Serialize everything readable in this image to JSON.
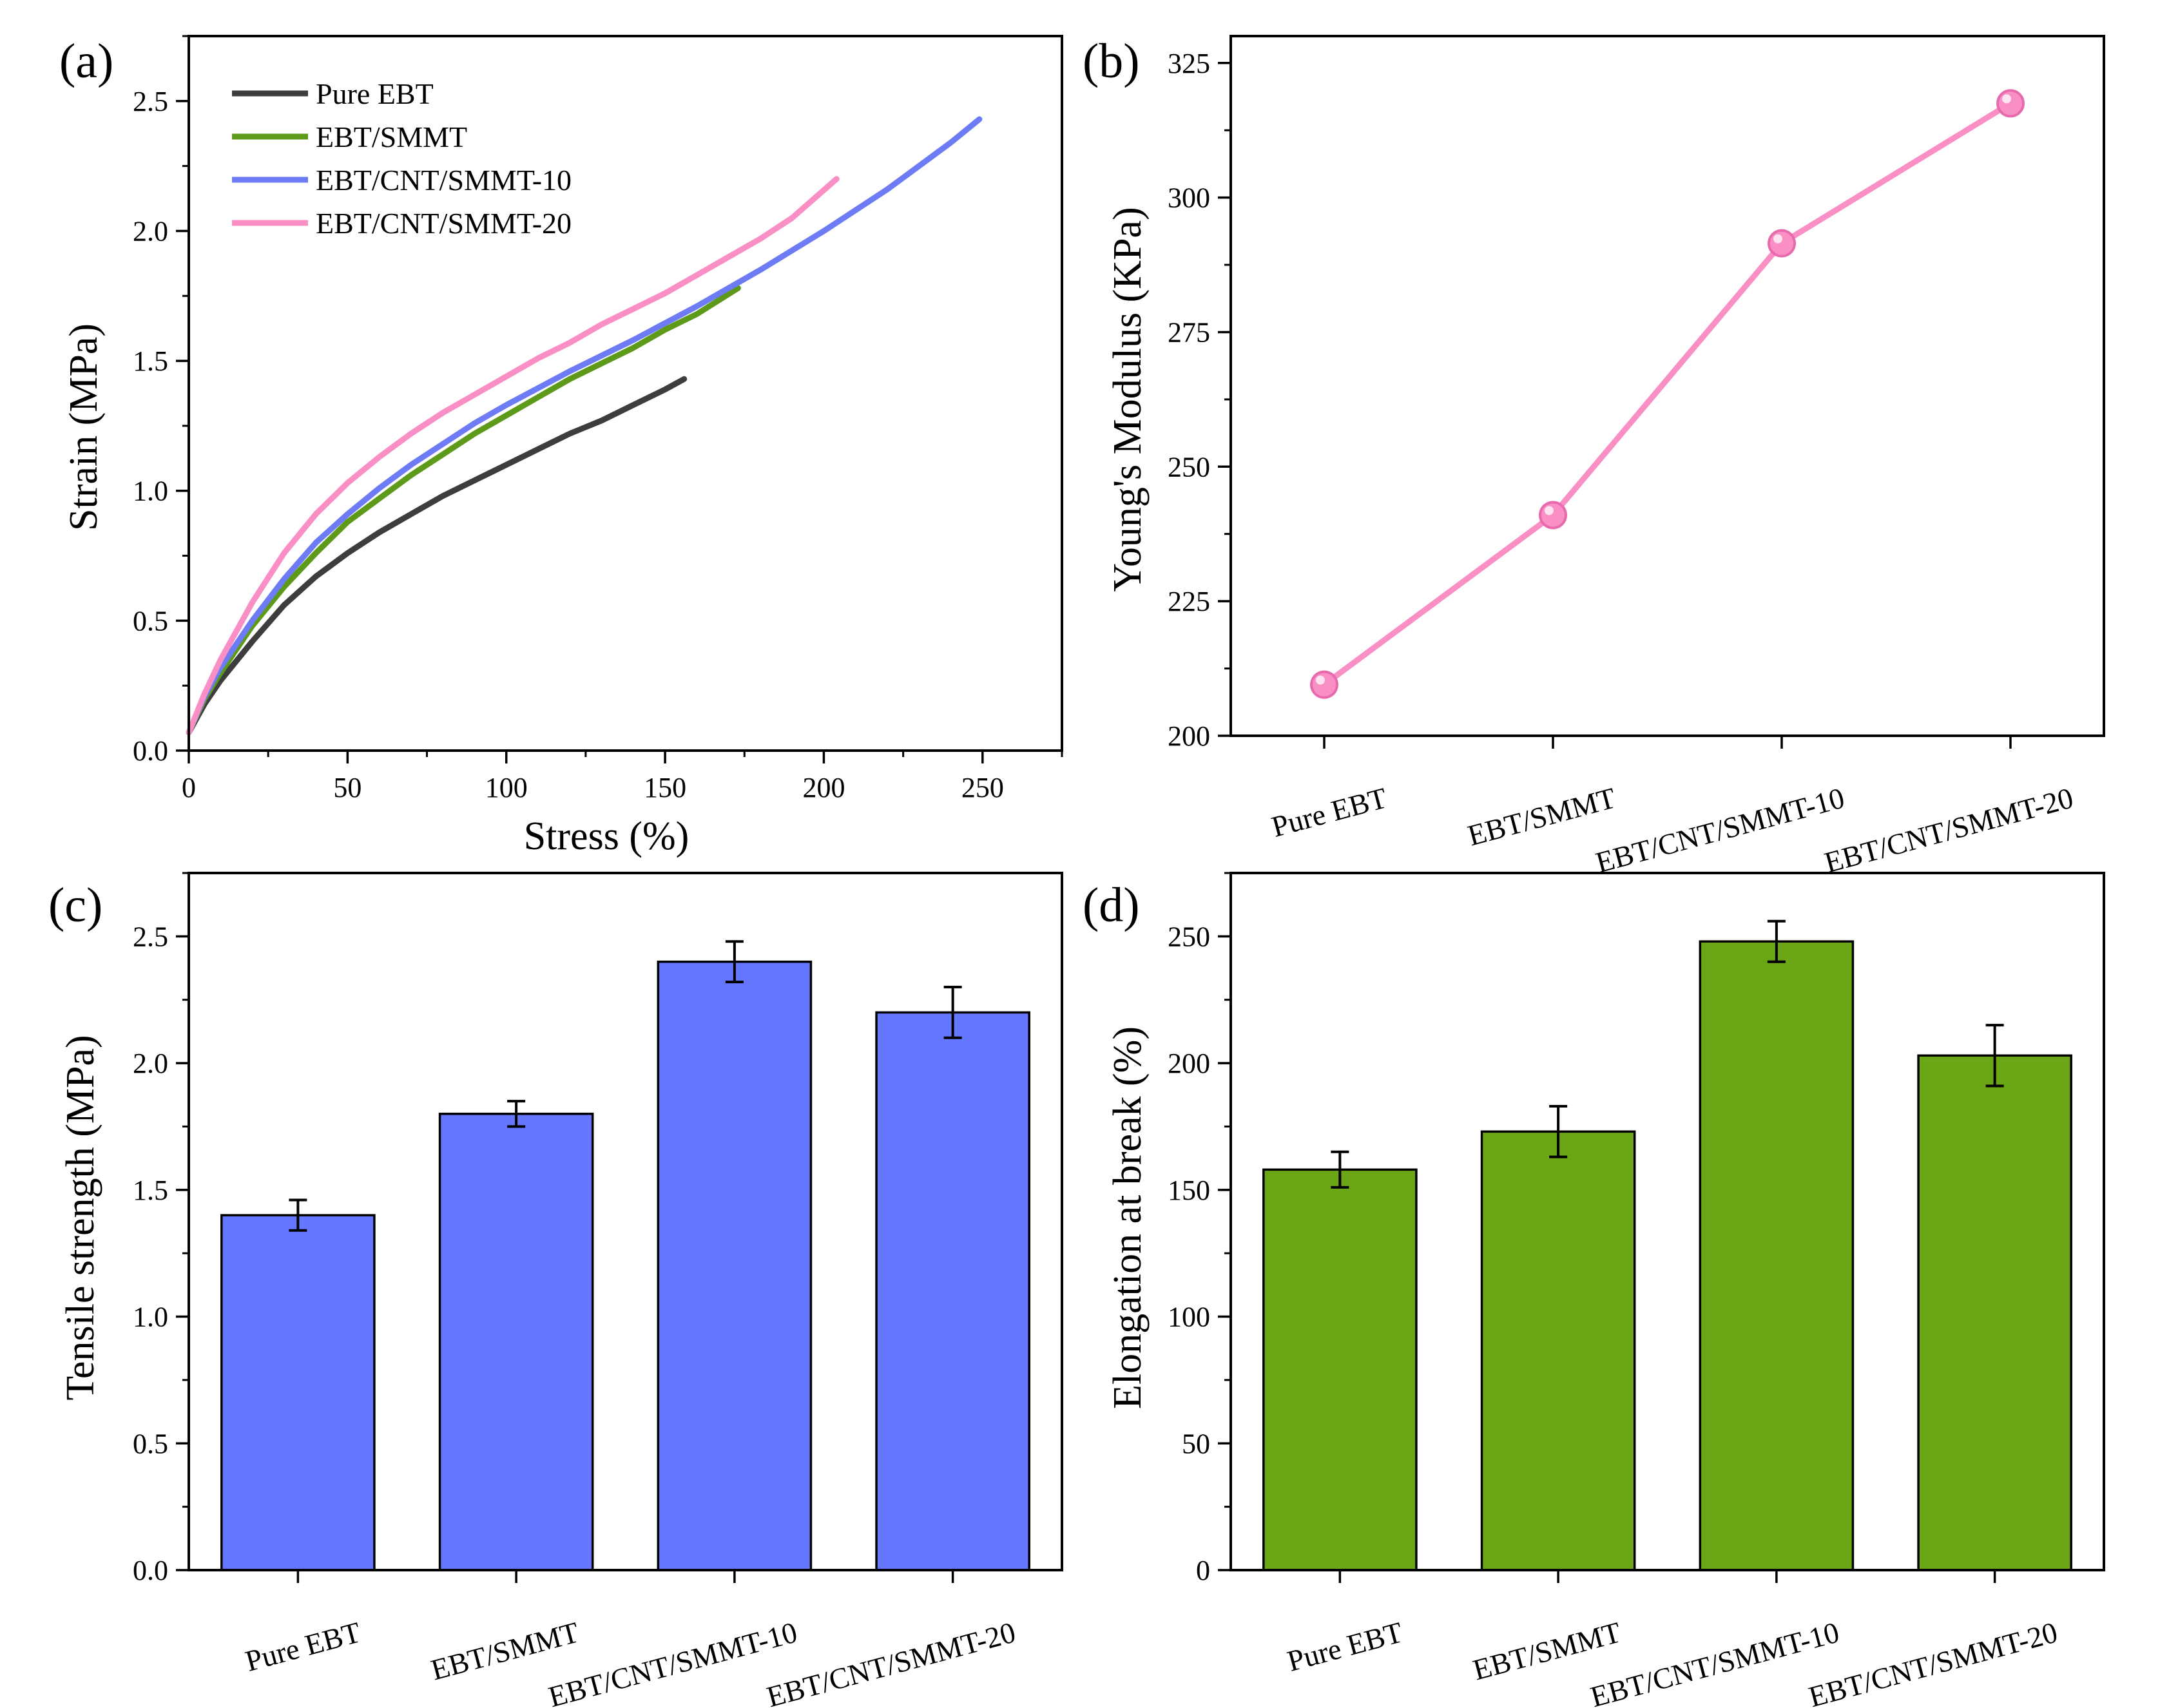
{
  "chart_data": [
    {
      "id": "a",
      "type": "line",
      "panel_label": "(a)",
      "xlabel": "Stress (%)",
      "ylabel": "Strain (MPa)",
      "xlim": [
        0,
        275
      ],
      "ylim": [
        0,
        2.75
      ],
      "xticks": [
        0,
        50,
        100,
        150,
        200,
        250
      ],
      "yticks": [
        0.0,
        0.5,
        1.0,
        1.5,
        2.0,
        2.5
      ],
      "legend_position": "top-left",
      "series": [
        {
          "name": "Pure EBT",
          "color": "#3d3d3d",
          "x": [
            0,
            5,
            10,
            20,
            30,
            40,
            50,
            60,
            70,
            80,
            90,
            100,
            110,
            120,
            130,
            140,
            150,
            156
          ],
          "y": [
            0.07,
            0.18,
            0.27,
            0.42,
            0.56,
            0.67,
            0.76,
            0.84,
            0.91,
            0.98,
            1.04,
            1.1,
            1.16,
            1.22,
            1.27,
            1.33,
            1.39,
            1.43
          ]
        },
        {
          "name": "EBT/SMMT",
          "color": "#5e9a1a",
          "x": [
            0,
            5,
            10,
            20,
            30,
            40,
            50,
            60,
            70,
            80,
            90,
            100,
            110,
            120,
            130,
            140,
            150,
            160,
            173
          ],
          "y": [
            0.07,
            0.2,
            0.3,
            0.48,
            0.63,
            0.76,
            0.88,
            0.97,
            1.06,
            1.14,
            1.22,
            1.29,
            1.36,
            1.43,
            1.49,
            1.55,
            1.62,
            1.68,
            1.78
          ]
        },
        {
          "name": "EBT/CNT/SMMT-10",
          "color": "#6d7cf4",
          "x": [
            0,
            5,
            10,
            20,
            30,
            40,
            50,
            60,
            70,
            80,
            90,
            100,
            120,
            140,
            160,
            180,
            200,
            220,
            240,
            249
          ],
          "y": [
            0.07,
            0.21,
            0.32,
            0.5,
            0.66,
            0.8,
            0.91,
            1.01,
            1.1,
            1.18,
            1.26,
            1.33,
            1.46,
            1.58,
            1.71,
            1.85,
            2.0,
            2.16,
            2.34,
            2.43
          ]
        },
        {
          "name": "EBT/CNT/SMMT-20",
          "color": "#f98fc5",
          "x": [
            0,
            5,
            10,
            20,
            30,
            40,
            50,
            60,
            70,
            80,
            90,
            100,
            110,
            120,
            130,
            140,
            150,
            160,
            170,
            180,
            190,
            204
          ],
          "y": [
            0.07,
            0.22,
            0.35,
            0.57,
            0.76,
            0.91,
            1.03,
            1.13,
            1.22,
            1.3,
            1.37,
            1.44,
            1.51,
            1.57,
            1.64,
            1.7,
            1.76,
            1.83,
            1.9,
            1.97,
            2.05,
            2.2
          ]
        }
      ]
    },
    {
      "id": "b",
      "type": "line",
      "panel_label": "(b)",
      "xlabel": "",
      "ylabel": "Young's Modulus (KPa)",
      "ylim": [
        200,
        330
      ],
      "yticks": [
        200,
        225,
        250,
        275,
        300,
        325
      ],
      "categories": [
        "Pure EBT",
        "EBT/SMMT",
        "EBT/CNT/SMMT-10",
        "EBT/CNT/SMMT-20"
      ],
      "values": [
        209.5,
        241,
        291.5,
        317.5
      ],
      "color": "#f98fc5"
    },
    {
      "id": "c",
      "type": "bar",
      "panel_label": "(c)",
      "xlabel": "",
      "ylabel": "Tensile strength (MPa)",
      "ylim": [
        0,
        2.75
      ],
      "yticks": [
        0.0,
        0.5,
        1.0,
        1.5,
        2.0,
        2.5
      ],
      "categories": [
        "Pure EBT",
        "EBT/SMMT",
        "EBT/CNT/SMMT-10",
        "EBT/CNT/SMMT-20"
      ],
      "values": [
        1.4,
        1.8,
        2.4,
        2.2
      ],
      "errors": [
        0.06,
        0.05,
        0.08,
        0.1
      ],
      "color": "#6677ff"
    },
    {
      "id": "d",
      "type": "bar",
      "panel_label": "(d)",
      "xlabel": "",
      "ylabel": "Elongation at break (%)",
      "ylim": [
        0,
        275
      ],
      "yticks": [
        0,
        50,
        100,
        150,
        200,
        250
      ],
      "categories": [
        "Pure EBT",
        "EBT/SMMT",
        "EBT/CNT/SMMT-10",
        "EBT/CNT/SMMT-20"
      ],
      "values": [
        158,
        173,
        248,
        203
      ],
      "errors": [
        7,
        10,
        8,
        12
      ],
      "color": "#6aa616"
    }
  ]
}
